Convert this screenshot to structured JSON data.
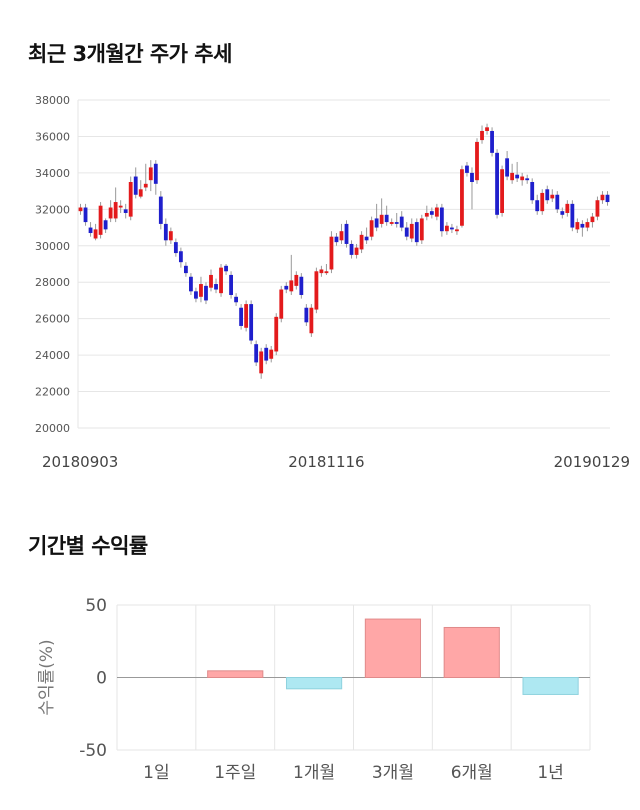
{
  "sections": {
    "price_title": "최근 3개월간 주가 추세",
    "return_title": "기간별 수익률"
  },
  "colors": {
    "up": "#e31a1c",
    "down": "#1f1fcc",
    "pos_bar": "#ffa7a7",
    "neg_bar": "#aee8f2",
    "grid": "#e6e6e6"
  },
  "chart_data": [
    {
      "type": "candlestick",
      "title": "최근 3개월간 주가 추세",
      "ylim": [
        20000,
        38000
      ],
      "yticks": [
        "38000",
        "36000",
        "34000",
        "32000",
        "30000",
        "28000",
        "26000",
        "24000",
        "22000",
        "20000"
      ],
      "xticklabels": [
        "20180903",
        "20181116",
        "20190129"
      ],
      "xtick_index": [
        0,
        49,
        100
      ],
      "grid": true,
      "candles": [
        [
          31900,
          32100,
          31700,
          32300
        ],
        [
          32100,
          31300,
          31100,
          32300
        ],
        [
          31000,
          30700,
          30500,
          31300
        ],
        [
          30400,
          30900,
          30300,
          31200
        ],
        [
          30600,
          32200,
          30400,
          32400
        ],
        [
          31400,
          30900,
          30700,
          31500
        ],
        [
          31500,
          32100,
          31300,
          32500
        ],
        [
          31500,
          32400,
          31300,
          33200
        ],
        [
          32100,
          32200,
          31800,
          32500
        ],
        [
          32000,
          31800,
          31500,
          32300
        ],
        [
          31600,
          33500,
          31400,
          33800
        ],
        [
          33800,
          32800,
          32600,
          34300
        ],
        [
          32700,
          33100,
          32600,
          33600
        ],
        [
          33200,
          33400,
          33000,
          34500
        ],
        [
          33600,
          34300,
          33000,
          34700
        ],
        [
          34500,
          33400,
          32800,
          34700
        ],
        [
          32700,
          31200,
          30900,
          33000
        ],
        [
          31200,
          30300,
          30000,
          31500
        ],
        [
          30300,
          30800,
          30100,
          31000
        ],
        [
          30200,
          29600,
          29400,
          30400
        ],
        [
          29700,
          29100,
          28800,
          29900
        ],
        [
          28900,
          28500,
          28300,
          29100
        ],
        [
          28300,
          27500,
          27300,
          28500
        ],
        [
          27500,
          27100,
          26900,
          27700
        ],
        [
          27200,
          27900,
          26900,
          28300
        ],
        [
          27800,
          27000,
          26800,
          28000
        ],
        [
          27700,
          28400,
          27500,
          28700
        ],
        [
          27900,
          27600,
          27400,
          28200
        ],
        [
          27400,
          28800,
          27200,
          29000
        ],
        [
          28900,
          28600,
          28400,
          29000
        ],
        [
          28400,
          27300,
          27100,
          28600
        ],
        [
          27200,
          26900,
          26700,
          27400
        ],
        [
          26600,
          25600,
          25400,
          26800
        ],
        [
          25500,
          26800,
          25300,
          27000
        ],
        [
          26800,
          24800,
          24600,
          27000
        ],
        [
          24600,
          23600,
          23400,
          24800
        ],
        [
          23000,
          24200,
          22700,
          24400
        ],
        [
          24400,
          23700,
          23500,
          24600
        ],
        [
          23800,
          24300,
          23600,
          24500
        ],
        [
          24200,
          26100,
          24000,
          26300
        ],
        [
          26000,
          27600,
          25800,
          27800
        ],
        [
          27800,
          27600,
          27400,
          28000
        ],
        [
          27500,
          28100,
          27300,
          29500
        ],
        [
          27800,
          28400,
          27600,
          28600
        ],
        [
          28300,
          27300,
          27100,
          28500
        ],
        [
          26600,
          25800,
          25600,
          26800
        ],
        [
          25200,
          26600,
          25000,
          26800
        ],
        [
          26500,
          28600,
          26300,
          28800
        ],
        [
          28500,
          28700,
          28300,
          28900
        ],
        [
          28500,
          28600,
          28400,
          29000
        ],
        [
          28700,
          30500,
          28500,
          30800
        ],
        [
          30500,
          30200,
          30000,
          30700
        ],
        [
          30300,
          30800,
          30100,
          31200
        ],
        [
          31200,
          30100,
          29900,
          31400
        ],
        [
          30100,
          29500,
          29300,
          30300
        ],
        [
          29500,
          29900,
          29300,
          30100
        ],
        [
          29800,
          30600,
          29600,
          30800
        ],
        [
          30500,
          30300,
          30100,
          31000
        ],
        [
          30500,
          31400,
          30300,
          31600
        ],
        [
          31500,
          31000,
          30800,
          32300
        ],
        [
          31200,
          31700,
          31000,
          32600
        ],
        [
          31700,
          31300,
          31100,
          32200
        ],
        [
          31200,
          31300,
          31100,
          31500
        ],
        [
          31300,
          31200,
          31000,
          31800
        ],
        [
          31600,
          31000,
          30800,
          31900
        ],
        [
          31000,
          30500,
          30300,
          31300
        ],
        [
          30400,
          31200,
          30200,
          31500
        ],
        [
          31300,
          30200,
          30000,
          31500
        ],
        [
          30300,
          31500,
          30100,
          31700
        ],
        [
          31600,
          31800,
          31400,
          32200
        ],
        [
          31900,
          31700,
          31500,
          32100
        ],
        [
          31600,
          32100,
          31400,
          32300
        ],
        [
          32100,
          30800,
          30500,
          32300
        ],
        [
          30800,
          31100,
          30600,
          31300
        ],
        [
          31000,
          30900,
          30700,
          31200
        ],
        [
          30800,
          30900,
          30600,
          31100
        ],
        [
          31100,
          34200,
          31000,
          34400
        ],
        [
          34400,
          34000,
          33800,
          34600
        ],
        [
          34000,
          33500,
          32000,
          34300
        ],
        [
          33600,
          35700,
          33400,
          35900
        ],
        [
          35800,
          36300,
          35600,
          36600
        ],
        [
          36300,
          36500,
          36100,
          36700
        ],
        [
          36300,
          35100,
          34900,
          36500
        ],
        [
          35100,
          31700,
          31500,
          35300
        ],
        [
          31800,
          34200,
          31600,
          34400
        ],
        [
          34800,
          33800,
          33600,
          35200
        ],
        [
          33600,
          34000,
          33400,
          34500
        ],
        [
          33900,
          33700,
          33500,
          34600
        ],
        [
          33600,
          33800,
          33300,
          34000
        ],
        [
          33700,
          33600,
          33400,
          33900
        ],
        [
          33500,
          32500,
          32300,
          33700
        ],
        [
          32500,
          31900,
          31700,
          32800
        ],
        [
          31900,
          32900,
          31700,
          33100
        ],
        [
          33100,
          32500,
          32300,
          33300
        ],
        [
          32600,
          32800,
          32400,
          33100
        ],
        [
          32800,
          32000,
          31800,
          33000
        ],
        [
          31900,
          31700,
          31500,
          32100
        ],
        [
          31800,
          32300,
          31600,
          32500
        ],
        [
          32300,
          31000,
          30800,
          32500
        ],
        [
          30900,
          31300,
          30700,
          31500
        ],
        [
          31200,
          31000,
          30500,
          31400
        ],
        [
          31000,
          31300,
          30800,
          31500
        ],
        [
          31300,
          31600,
          31000,
          31800
        ],
        [
          31600,
          32500,
          31400,
          32700
        ],
        [
          32500,
          32800,
          32300,
          33000
        ],
        [
          32800,
          32400,
          32200,
          33000
        ]
      ]
    },
    {
      "type": "bar",
      "title": "기간별 수익률",
      "categories": [
        "1일",
        "1주일",
        "1개월",
        "3개월",
        "6개월",
        "1년"
      ],
      "values": [
        0,
        4.6,
        -7.8,
        40.3,
        34.5,
        -11.7
      ],
      "ylim": [
        -50,
        50
      ],
      "yticks": [
        "50",
        "0",
        "-50"
      ],
      "ylabel": "수익률(%)",
      "grid": true
    }
  ]
}
